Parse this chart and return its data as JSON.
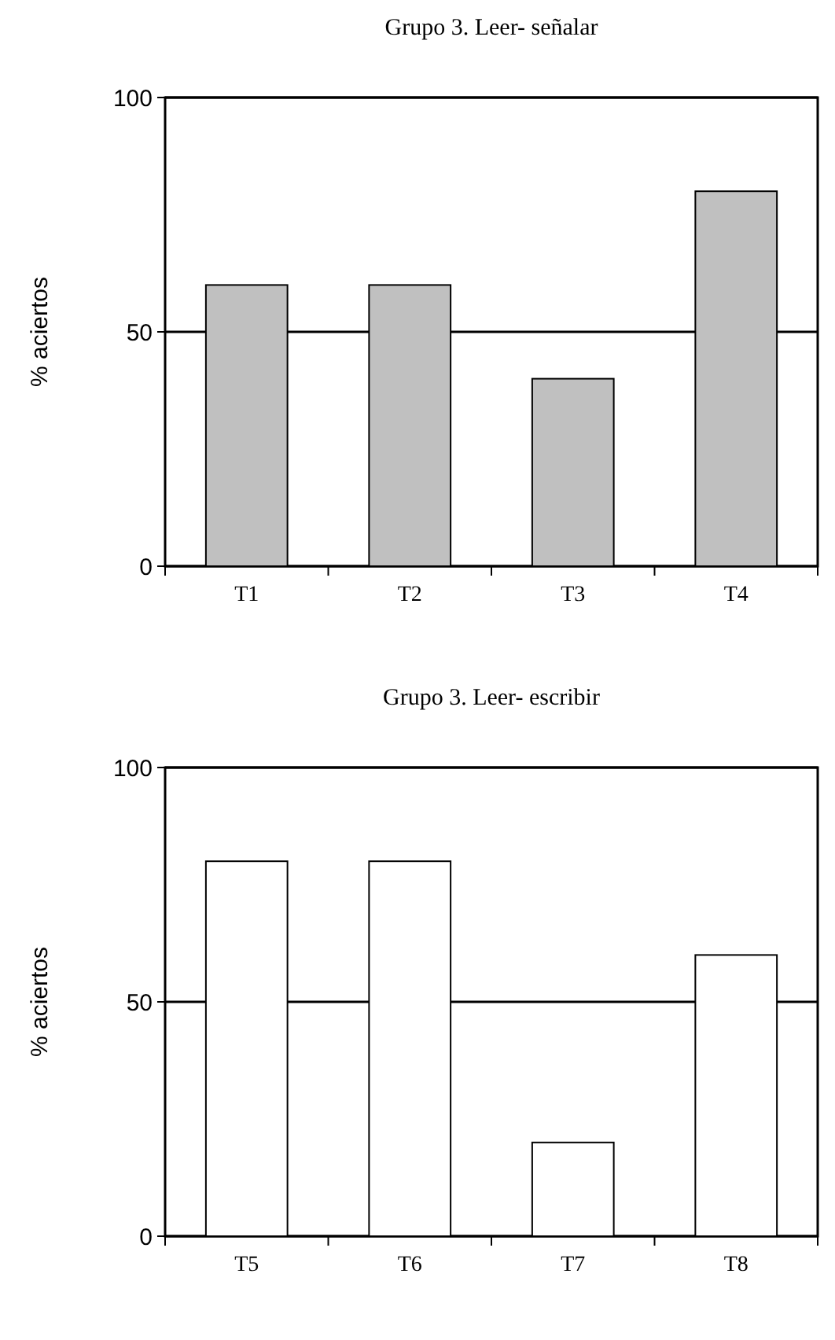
{
  "chart_data": [
    {
      "type": "bar",
      "title": "Grupo 3. Leer- señalar",
      "ylabel": "% aciertos",
      "categories": [
        "T1",
        "T2",
        "T3",
        "T4"
      ],
      "values": [
        60,
        60,
        40,
        80
      ],
      "color": "#c0c0c0",
      "ylim": [
        0,
        100
      ],
      "yticks": [
        0,
        50,
        100
      ],
      "grid": "y"
    },
    {
      "type": "bar",
      "title": "Grupo 3. Leer- escribir",
      "ylabel": "% aciertos",
      "categories": [
        "T5",
        "T6",
        "T7",
        "T8"
      ],
      "values": [
        80,
        80,
        20,
        60
      ],
      "color": "#ffffff",
      "ylim": [
        0,
        100
      ],
      "yticks": [
        0,
        50,
        100
      ],
      "grid": "y"
    }
  ]
}
